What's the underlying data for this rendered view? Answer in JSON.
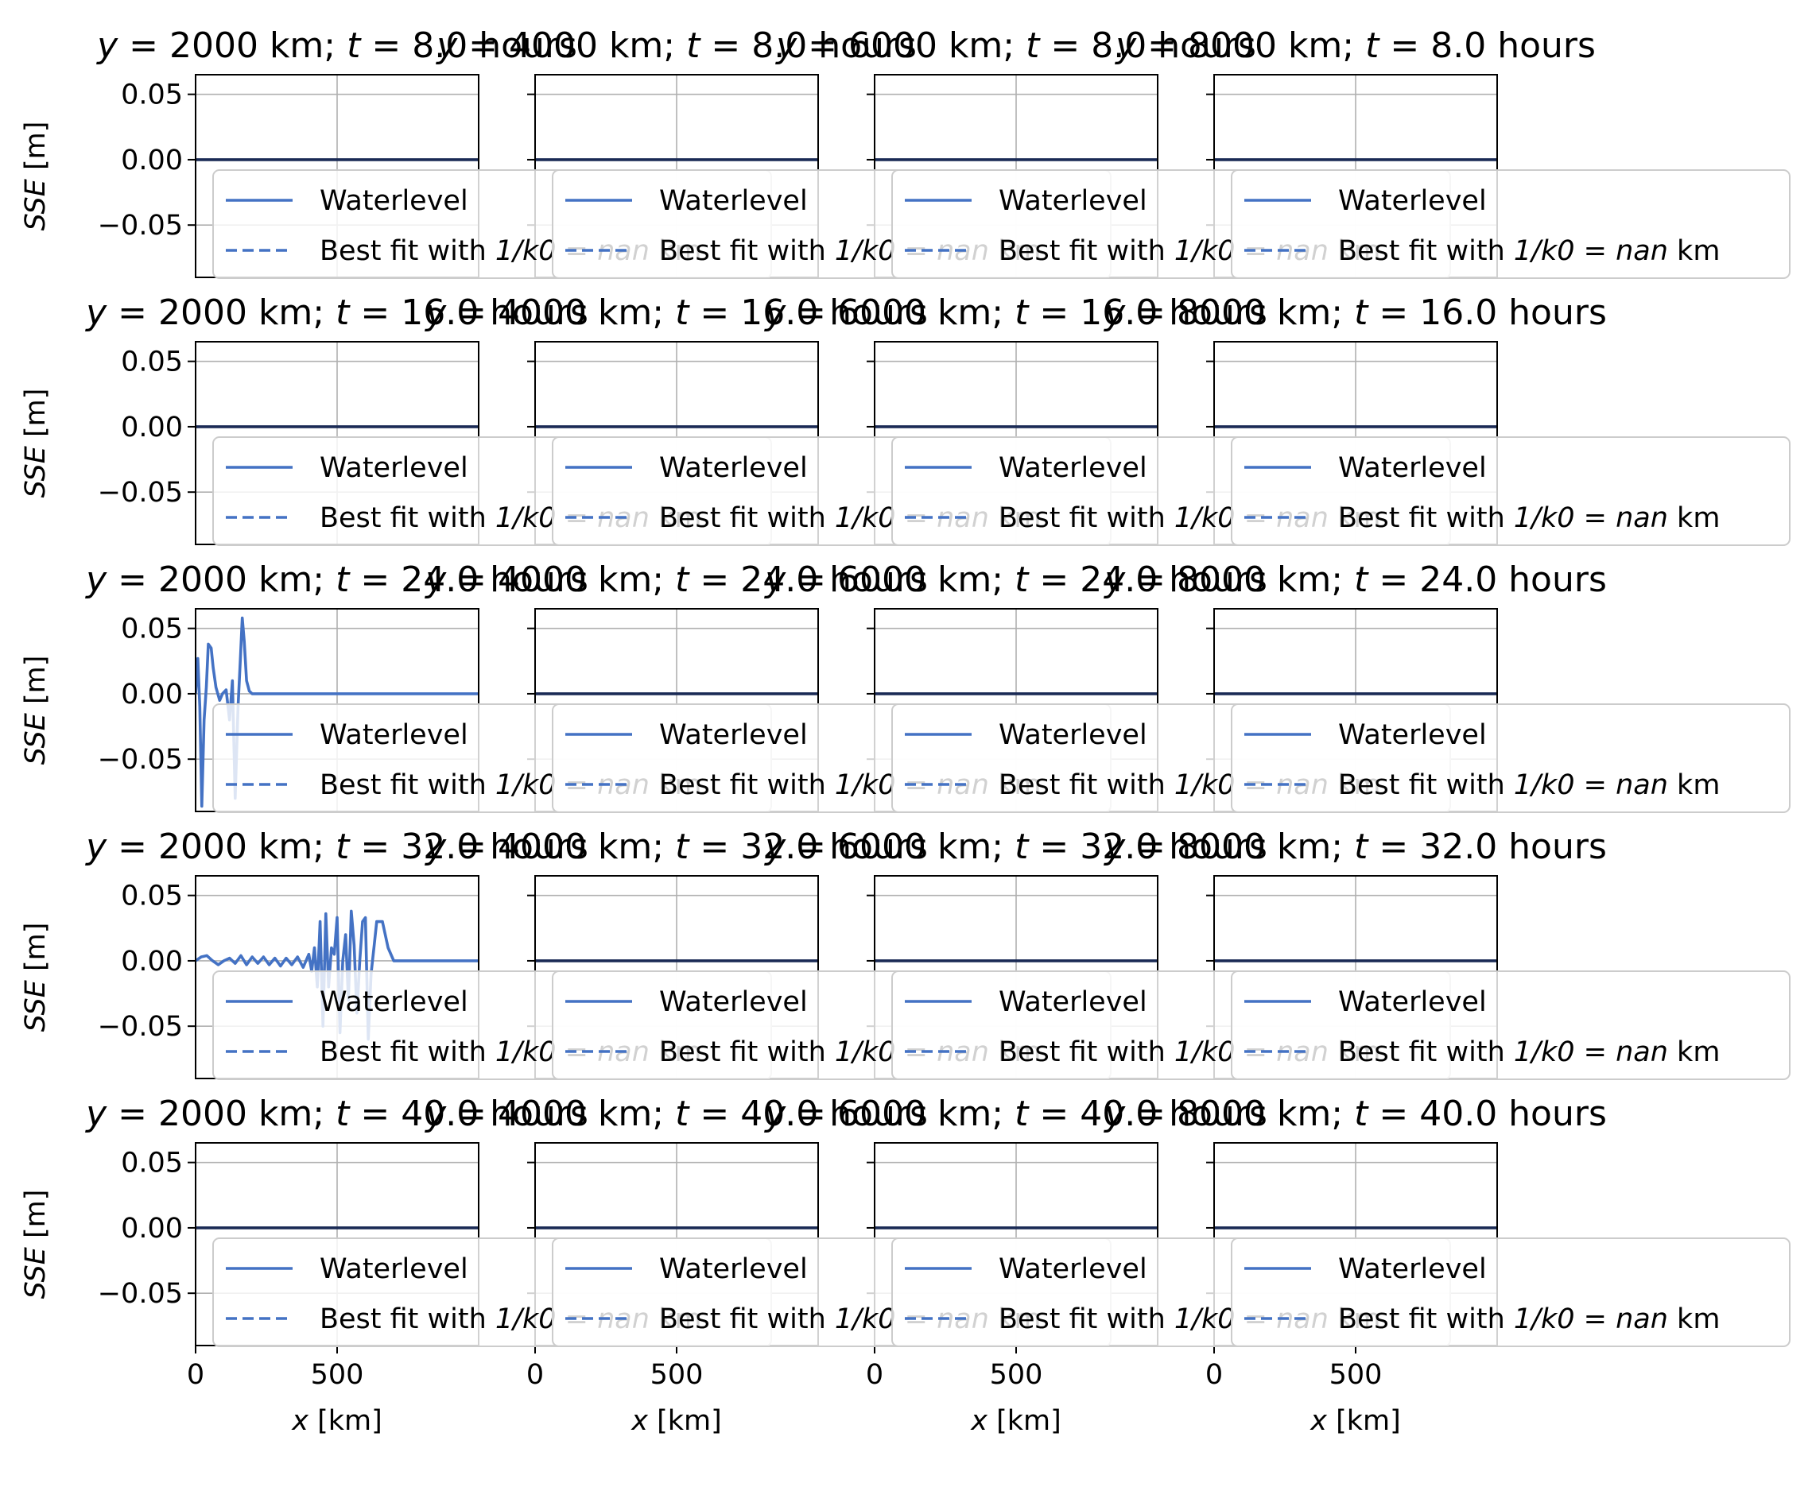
{
  "figure": {
    "rows": [
      {
        "t_label": "8.0"
      },
      {
        "t_label": "16.0"
      },
      {
        "t_label": "24.0"
      },
      {
        "t_label": "32.0"
      },
      {
        "t_label": "40.0"
      }
    ],
    "cols": [
      {
        "y_label": "2000"
      },
      {
        "y_label": "4000"
      },
      {
        "y_label": "6000"
      },
      {
        "y_label": "8000"
      }
    ],
    "title_parts": {
      "y_sym": "y",
      "eq": " = ",
      "km_sep": " km; ",
      "t_sym": "t",
      "hours": " hours"
    },
    "ylabel": {
      "sym": "SSE",
      "unit": " [m]"
    },
    "xlabel": {
      "sym": "x",
      "unit": " [km]"
    },
    "legend": {
      "waterlevel": "Waterlevel",
      "bestfit_prefix": "Best fit with ",
      "bestfit_k": "1/k0",
      "bestfit_eq": " = ",
      "bestfit_val": "nan",
      "bestfit_unit": " km"
    },
    "line_color": "#4472c4"
  },
  "chart_data": {
    "type": "line",
    "subplots": "5 rows x 4 columns; shared axes",
    "xlim": [
      0,
      1000
    ],
    "ylim": [
      -0.09,
      0.065
    ],
    "xticks": [
      0,
      500
    ],
    "xtick_labels": [
      "0",
      "500"
    ],
    "yticks": [
      0.05,
      0.0,
      -0.05
    ],
    "ytick_labels": [
      "0.05",
      "0.00",
      "−0.05"
    ],
    "grid": true,
    "legend_placement": "lower-left",
    "series_names": [
      "Waterlevel",
      "Best fit with 1/k0 = nan km"
    ],
    "panels_with_signal": [
      {
        "row": 2,
        "col": 0,
        "x": [
          0,
          8,
          15,
          22,
          30,
          38,
          45,
          55,
          62,
          72,
          85,
          95,
          108,
          120,
          130,
          140,
          150,
          158,
          165,
          172,
          180,
          190,
          200,
          250,
          400,
          600,
          800,
          1000
        ],
        "y": [
          0.0,
          0.027,
          -0.01,
          -0.086,
          -0.02,
          0.005,
          0.038,
          0.035,
          0.02,
          0.005,
          -0.005,
          0.0,
          0.003,
          -0.02,
          0.01,
          -0.08,
          -0.01,
          0.025,
          0.058,
          0.04,
          0.01,
          0.002,
          0.0,
          0.0,
          0.0,
          0.0,
          0.0,
          0.0
        ]
      },
      {
        "row": 3,
        "col": 0,
        "x": [
          0,
          20,
          40,
          60,
          80,
          100,
          120,
          140,
          160,
          180,
          200,
          220,
          240,
          260,
          280,
          300,
          320,
          340,
          360,
          380,
          400,
          410,
          420,
          430,
          440,
          450,
          460,
          470,
          480,
          490,
          500,
          510,
          520,
          530,
          540,
          550,
          560,
          570,
          580,
          590,
          600,
          610,
          620,
          630,
          640,
          660,
          680,
          700,
          750,
          800,
          1000
        ],
        "y": [
          0.0,
          0.003,
          0.004,
          0.0,
          -0.003,
          0.0,
          0.002,
          -0.002,
          0.004,
          -0.003,
          0.003,
          -0.002,
          0.003,
          -0.003,
          0.002,
          -0.004,
          0.002,
          -0.003,
          0.003,
          -0.005,
          0.005,
          -0.008,
          0.01,
          -0.02,
          0.03,
          -0.05,
          0.036,
          -0.02,
          0.01,
          0.005,
          0.033,
          -0.055,
          0.0,
          0.02,
          -0.03,
          0.038,
          0.012,
          -0.04,
          0.0,
          0.03,
          0.033,
          -0.06,
          -0.01,
          0.01,
          0.03,
          0.03,
          0.01,
          0.0,
          0.0,
          0.0,
          0.0
        ]
      }
    ],
    "flat_panels_value": 0.0
  }
}
